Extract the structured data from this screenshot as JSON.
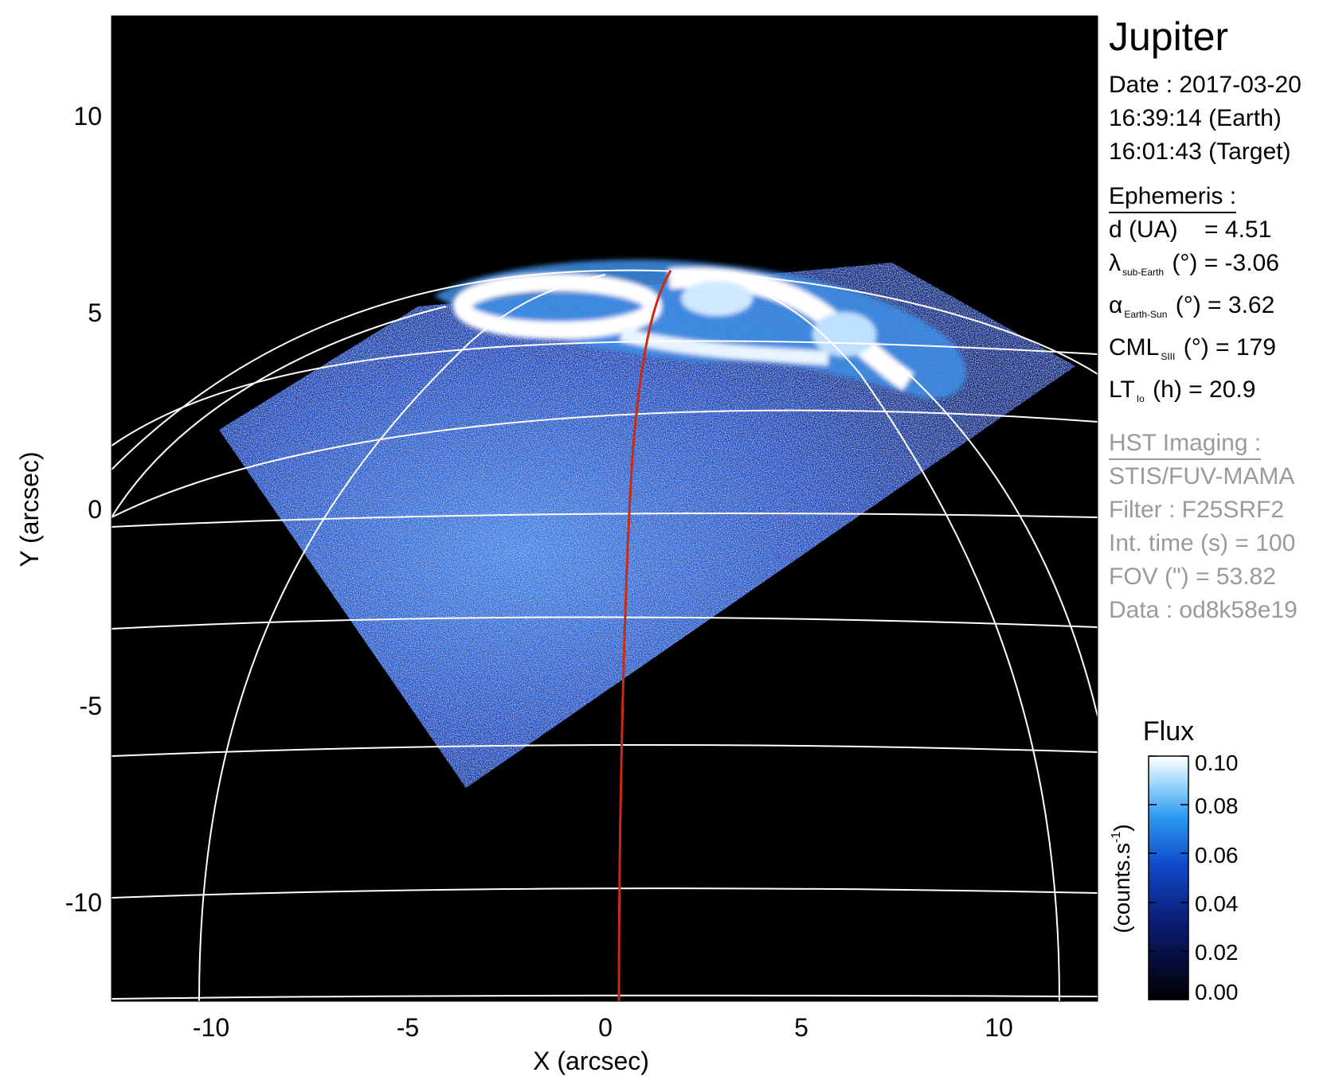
{
  "title": "Jupiter",
  "date": {
    "date_line": "Date : 2017-03-20",
    "earth_time": "16:39:14 (Earth)",
    "target_time": "16:01:43 (Target)"
  },
  "ephemeris": {
    "heading": "Ephemeris :",
    "d": {
      "label": "d (UA)",
      "value": "= 4.51"
    },
    "lat": {
      "symbol": "λ",
      "sub": "sub-Earth",
      "rest": "(°) = -3.06"
    },
    "phase": {
      "symbol": "α",
      "sub": "Earth-Sun",
      "rest": "(°) = 3.62"
    },
    "cml": {
      "symbol": "CML",
      "sub": "SIII",
      "rest": "(°) = 179"
    },
    "lt": {
      "symbol": "LT",
      "sub": "Io",
      "rest": "(h) = 20.9"
    }
  },
  "hst": {
    "heading": "HST Imaging :",
    "instrument": "STIS/FUV-MAMA",
    "filter": "Filter : F25SRF2",
    "int_time": "Int. time (s) = 100",
    "fov": "FOV (\") = 53.82",
    "data": "Data : od8k58e19"
  },
  "axes": {
    "x_label": "X (arcsec)",
    "y_label": "Y (arcsec)",
    "x_ticks": [
      "-10",
      "-5",
      "0",
      "5",
      "10"
    ],
    "y_ticks": [
      "10",
      "5",
      "0",
      "-5",
      "-10"
    ]
  },
  "colorbar": {
    "title": "Flux",
    "unit": "(counts.s",
    "unit_sup": "-1",
    "unit_end": ")",
    "ticks": [
      "0.10",
      "0.08",
      "0.06",
      "0.04",
      "0.02",
      "0.00"
    ]
  },
  "colors": {
    "background": "#000000",
    "grid": "#ffffff",
    "meridian": "#cc2a12",
    "flux_low": "#000000",
    "flux_mid": "#1a8fe6",
    "flux_high": "#ffffff",
    "muted_text": "#9a9a9a"
  }
}
